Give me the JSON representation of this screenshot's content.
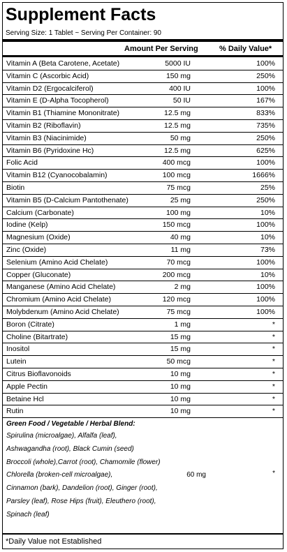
{
  "title": "Supplement Facts",
  "serving": "Serving Size: 1 Tablet ~ Serving Per Container: 90",
  "columns": [
    "Amount Per Serving",
    "% Daily Value*"
  ],
  "rows": [
    [
      "Vitamin A (Beta Carotene, Acetate)",
      "5000 IU",
      "100%"
    ],
    [
      "Vitamin C (Ascorbic Acid)",
      "150 mg",
      "250%"
    ],
    [
      "Vitamin D2 (Ergocalciferol)",
      "400 IU",
      "100%"
    ],
    [
      "Vitamin E (D-Alpha Tocopherol)",
      "50 IU",
      "167%"
    ],
    [
      "Vitamin B1 (Thiamine Mononitrate)",
      "12.5 mg",
      "833%"
    ],
    [
      "Vitamin B2 (Riboflavin)",
      "12.5 mg",
      "735%"
    ],
    [
      "Vitamin B3 (Niacinimide)",
      "50 mg",
      "250%"
    ],
    [
      "Vitamin B6 (Pyridoxine Hc)",
      "12.5 mg",
      "625%"
    ],
    [
      "Folic Acid",
      "400 mcg",
      "100%"
    ],
    [
      "Vitamin B12 (Cyanocobalamin)",
      "100 mcg",
      "1666%"
    ],
    [
      "Biotin",
      "75 mcg",
      "25%"
    ],
    [
      "Vitamin B5 (D-Calcium Pantothenate)",
      "25 mg",
      "250%"
    ],
    [
      "Calcium (Carbonate)",
      "100 mg",
      "10%"
    ],
    [
      "Iodine (Kelp)",
      "150 mcg",
      "100%"
    ],
    [
      "Magnesium (Oxide)",
      "40 mg",
      "10%"
    ],
    [
      "Zinc (Oxide)",
      "11 mg",
      "73%"
    ],
    [
      "Selenium (Amino Acid Chelate)",
      "70 mcg",
      "100%"
    ],
    [
      "Copper (Gluconate)",
      "200 mcg",
      "10%"
    ],
    [
      "Manganese (Amino Acid Chelate)",
      "2 mg",
      "100%"
    ],
    [
      "Chromium (Amino Acid Chelate)",
      "120 mcg",
      "100%"
    ],
    [
      "Molybdenum (Amino Acid Chelate)",
      "75 mcg",
      "100%"
    ],
    [
      "Boron (Citrate)",
      "1 mg",
      "*"
    ],
    [
      "Choline (Bitartrate)",
      "15 mg",
      "*"
    ],
    [
      "Inositol",
      "15 mg",
      "*"
    ],
    [
      "Lutein",
      "50 mcg",
      "*"
    ],
    [
      "Citrus Bioflavonoids",
      "10 mg",
      "*"
    ],
    [
      "Apple Pectin",
      "10 mg",
      "*"
    ],
    [
      "Betaine Hcl",
      "10 mg",
      "*"
    ],
    [
      "Rutin",
      "10 mg",
      "*"
    ]
  ],
  "blend": {
    "title": "Green Food / Vegetable / Herbal Blend:",
    "lines": [
      "Spirulina (microalgae), Alfalfa (leaf),",
      "Ashwagandha (root), Black Cumin (seed)",
      "Broccoli (whole),Carrot (root), Chamomile (flower)",
      "Chlorella (broken-cell microalgae),",
      "Cinnamon (bark), Dandelion (root), Ginger (root),",
      "Parsley (leaf), Rose Hips (fruit), Eleuthero (root),",
      "Spinach (leaf)"
    ],
    "amount": "60 mg",
    "daily_value": "*"
  },
  "footnote": "*Daily Value not Established"
}
